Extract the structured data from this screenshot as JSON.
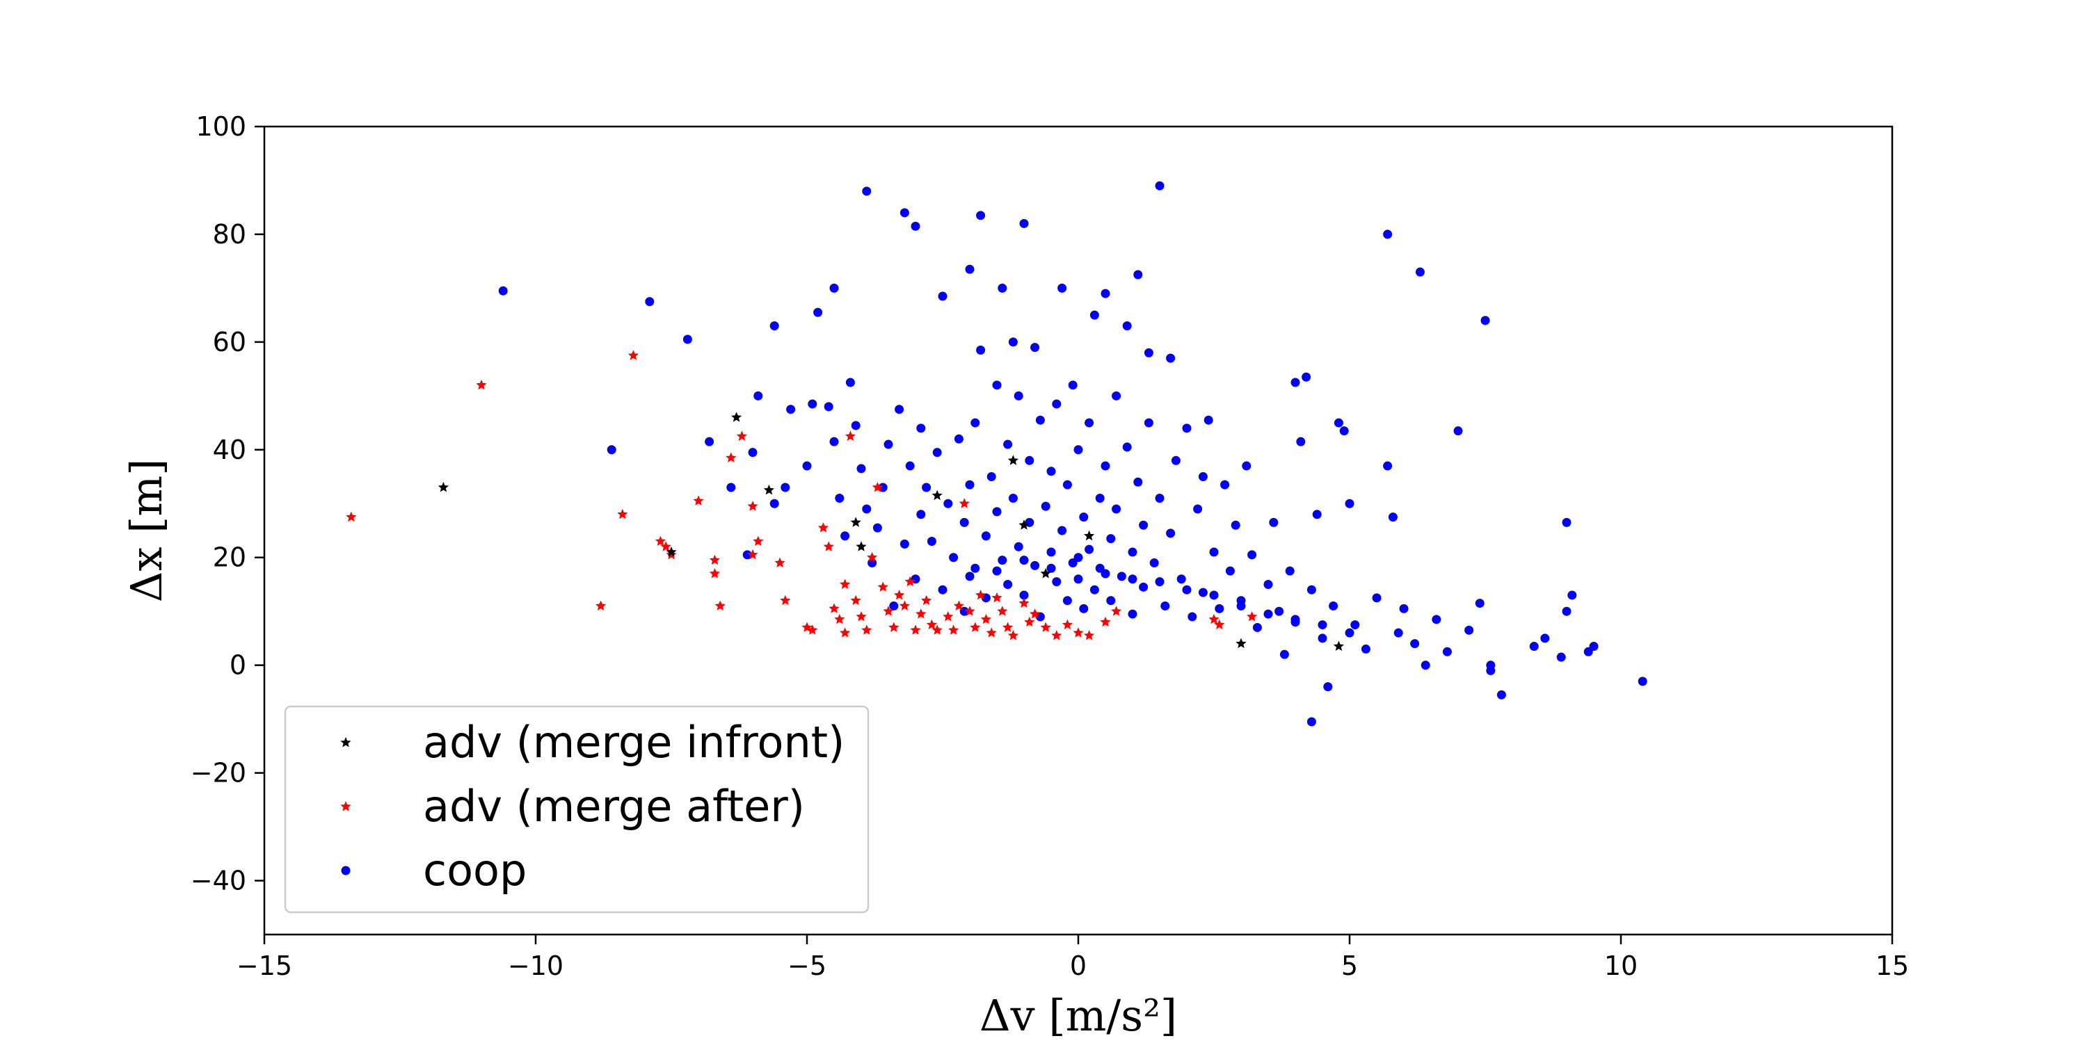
{
  "chart_data": {
    "type": "scatter",
    "xlabel": "Δv  [m/s²]",
    "ylabel": "Δx  [m]",
    "xlim": [
      -15,
      15
    ],
    "ylim": [
      -50,
      100
    ],
    "xticks": [
      -15,
      -10,
      -5,
      0,
      5,
      10,
      15
    ],
    "yticks": [
      -40,
      -20,
      0,
      20,
      40,
      60,
      80,
      100
    ],
    "xtick_labels": [
      "−15",
      "−10",
      "−5",
      "0",
      "5",
      "10",
      "15"
    ],
    "ytick_labels": [
      "−40",
      "−20",
      "0",
      "20",
      "40",
      "60",
      "80",
      "100"
    ],
    "grid": false,
    "legend_position": "lower-left",
    "series": [
      {
        "name": "adv (merge infront)",
        "color": "#000000",
        "marker": "star",
        "points": [
          [
            -11.7,
            33
          ],
          [
            -7.5,
            21
          ],
          [
            -6.3,
            46
          ],
          [
            -5.7,
            32.5
          ],
          [
            -4.1,
            26.5
          ],
          [
            -4.0,
            22
          ],
          [
            -2.6,
            31.5
          ],
          [
            -1.2,
            38
          ],
          [
            -1.0,
            26
          ],
          [
            -0.6,
            17
          ],
          [
            0.2,
            24
          ],
          [
            3.0,
            4
          ],
          [
            4.8,
            3.5
          ]
        ]
      },
      {
        "name": "adv (merge after)",
        "color": "#ff0000",
        "marker": "star",
        "points": [
          [
            -13.4,
            27.5
          ],
          [
            -11.0,
            52
          ],
          [
            -8.2,
            57.5
          ],
          [
            -8.8,
            11
          ],
          [
            -8.4,
            28
          ],
          [
            -7.7,
            23
          ],
          [
            -7.6,
            22
          ],
          [
            -7.5,
            20.5
          ],
          [
            -7.0,
            30.5
          ],
          [
            -6.7,
            19.5
          ],
          [
            -6.7,
            17
          ],
          [
            -6.6,
            11
          ],
          [
            -6.4,
            38.5
          ],
          [
            -6.2,
            42.5
          ],
          [
            -6.0,
            29.5
          ],
          [
            -6.0,
            20.5
          ],
          [
            -5.9,
            23
          ],
          [
            -5.5,
            19
          ],
          [
            -5.4,
            12
          ],
          [
            -5.0,
            7
          ],
          [
            -4.9,
            6.5
          ],
          [
            -4.7,
            25.5
          ],
          [
            -4.6,
            22
          ],
          [
            -4.5,
            10.5
          ],
          [
            -4.4,
            8.5
          ],
          [
            -4.3,
            15
          ],
          [
            -4.3,
            6
          ],
          [
            -4.2,
            42.5
          ],
          [
            -4.1,
            12
          ],
          [
            -4.0,
            9
          ],
          [
            -3.9,
            6.5
          ],
          [
            -3.8,
            20
          ],
          [
            -3.7,
            33
          ],
          [
            -3.6,
            14.5
          ],
          [
            -3.5,
            10
          ],
          [
            -3.4,
            7
          ],
          [
            -3.3,
            13
          ],
          [
            -3.2,
            11
          ],
          [
            -3.1,
            15.5
          ],
          [
            -3.0,
            6.5
          ],
          [
            -2.9,
            9.5
          ],
          [
            -2.8,
            12
          ],
          [
            -2.7,
            7.5
          ],
          [
            -2.6,
            6.5
          ],
          [
            -2.4,
            9
          ],
          [
            -2.3,
            6.5
          ],
          [
            -2.2,
            11
          ],
          [
            -2.1,
            30
          ],
          [
            -2.0,
            10
          ],
          [
            -1.9,
            7
          ],
          [
            -1.8,
            13
          ],
          [
            -1.7,
            8.5
          ],
          [
            -1.6,
            6
          ],
          [
            -1.5,
            12.5
          ],
          [
            -1.4,
            10
          ],
          [
            -1.3,
            7
          ],
          [
            -1.2,
            5.5
          ],
          [
            -1.0,
            11.5
          ],
          [
            -0.9,
            8
          ],
          [
            -0.8,
            9.5
          ],
          [
            -0.6,
            7
          ],
          [
            -0.4,
            5.5
          ],
          [
            -0.2,
            7.5
          ],
          [
            0.0,
            6
          ],
          [
            0.2,
            5.5
          ],
          [
            0.5,
            8
          ],
          [
            0.7,
            10
          ],
          [
            2.5,
            8.5
          ],
          [
            2.6,
            7.5
          ],
          [
            3.2,
            9
          ]
        ]
      },
      {
        "name": "coop",
        "color": "#0000ff",
        "marker": "circle",
        "points": [
          [
            -10.6,
            69.5
          ],
          [
            -8.6,
            40
          ],
          [
            -7.9,
            67.5
          ],
          [
            -7.2,
            60.5
          ],
          [
            -6.8,
            41.5
          ],
          [
            -6.4,
            33
          ],
          [
            -6.1,
            20.5
          ],
          [
            -6.0,
            39.5
          ],
          [
            -5.9,
            50
          ],
          [
            -5.6,
            63
          ],
          [
            -5.6,
            30
          ],
          [
            -5.4,
            33
          ],
          [
            -5.3,
            47.5
          ],
          [
            -5.0,
            37
          ],
          [
            -4.9,
            48.5
          ],
          [
            -4.8,
            65.5
          ],
          [
            -4.6,
            48
          ],
          [
            -4.5,
            70
          ],
          [
            -4.5,
            41.5
          ],
          [
            -4.4,
            31
          ],
          [
            -4.3,
            24
          ],
          [
            -4.2,
            52.5
          ],
          [
            -4.1,
            44.5
          ],
          [
            -4.0,
            36.5
          ],
          [
            -3.9,
            29
          ],
          [
            -3.9,
            88
          ],
          [
            -3.8,
            19
          ],
          [
            -3.7,
            25.5
          ],
          [
            -3.6,
            33
          ],
          [
            -3.5,
            41
          ],
          [
            -3.4,
            11
          ],
          [
            -3.3,
            47.5
          ],
          [
            -3.2,
            84
          ],
          [
            -3.2,
            22.5
          ],
          [
            -3.1,
            37
          ],
          [
            -3.0,
            81.5
          ],
          [
            -3.0,
            16
          ],
          [
            -2.9,
            28
          ],
          [
            -2.9,
            44
          ],
          [
            -2.8,
            33
          ],
          [
            -2.7,
            23
          ],
          [
            -2.6,
            39.5
          ],
          [
            -2.5,
            68.5
          ],
          [
            -2.5,
            14
          ],
          [
            -2.4,
            30
          ],
          [
            -2.3,
            20
          ],
          [
            -2.2,
            42
          ],
          [
            -2.1,
            26.5
          ],
          [
            -2.1,
            10
          ],
          [
            -2.0,
            73.5
          ],
          [
            -2.0,
            33.5
          ],
          [
            -1.9,
            18
          ],
          [
            -1.9,
            45
          ],
          [
            -1.8,
            58.5
          ],
          [
            -1.8,
            83.5
          ],
          [
            -1.7,
            24
          ],
          [
            -1.7,
            12.5
          ],
          [
            -1.6,
            35
          ],
          [
            -1.5,
            28.5
          ],
          [
            -1.5,
            52
          ],
          [
            -1.4,
            19.5
          ],
          [
            -1.4,
            70
          ],
          [
            -1.3,
            41
          ],
          [
            -1.3,
            15
          ],
          [
            -1.2,
            60
          ],
          [
            -1.2,
            31
          ],
          [
            -1.1,
            22
          ],
          [
            -1.1,
            50
          ],
          [
            -1.0,
            82
          ],
          [
            -1.0,
            13
          ],
          [
            -0.9,
            26.5
          ],
          [
            -0.9,
            38
          ],
          [
            -0.8,
            59
          ],
          [
            -0.8,
            18.5
          ],
          [
            -0.7,
            45.5
          ],
          [
            -0.7,
            9
          ],
          [
            -0.6,
            29.5
          ],
          [
            -0.5,
            21
          ],
          [
            -0.5,
            36
          ],
          [
            -0.4,
            15.5
          ],
          [
            -0.4,
            48.5
          ],
          [
            -0.3,
            70
          ],
          [
            -0.3,
            25
          ],
          [
            -0.2,
            12
          ],
          [
            -0.2,
            33.5
          ],
          [
            -0.1,
            19
          ],
          [
            -0.1,
            52
          ],
          [
            0.0,
            40
          ],
          [
            0.0,
            16
          ],
          [
            0.1,
            27.5
          ],
          [
            0.1,
            10.5
          ],
          [
            0.2,
            45
          ],
          [
            0.2,
            21.5
          ],
          [
            0.3,
            65
          ],
          [
            0.3,
            14
          ],
          [
            0.4,
            31
          ],
          [
            0.4,
            18
          ],
          [
            0.5,
            69
          ],
          [
            0.5,
            37
          ],
          [
            0.6,
            23.5
          ],
          [
            0.6,
            12
          ],
          [
            0.7,
            50
          ],
          [
            0.7,
            29
          ],
          [
            0.8,
            16.5
          ],
          [
            0.9,
            63
          ],
          [
            0.9,
            40.5
          ],
          [
            1.0,
            21
          ],
          [
            1.0,
            9.5
          ],
          [
            1.1,
            34
          ],
          [
            1.1,
            72.5
          ],
          [
            1.2,
            26
          ],
          [
            1.2,
            14.5
          ],
          [
            1.3,
            58
          ],
          [
            1.3,
            45
          ],
          [
            1.4,
            19
          ],
          [
            1.5,
            89
          ],
          [
            1.5,
            31
          ],
          [
            1.6,
            11
          ],
          [
            1.7,
            57
          ],
          [
            1.7,
            24.5
          ],
          [
            1.8,
            38
          ],
          [
            1.9,
            16
          ],
          [
            2.0,
            44
          ],
          [
            2.1,
            9
          ],
          [
            2.2,
            29
          ],
          [
            2.3,
            35
          ],
          [
            2.3,
            13.5
          ],
          [
            2.4,
            45.5
          ],
          [
            2.5,
            21
          ],
          [
            2.6,
            10.5
          ],
          [
            2.7,
            33.5
          ],
          [
            2.8,
            17.5
          ],
          [
            2.9,
            26
          ],
          [
            3.0,
            12
          ],
          [
            3.1,
            37
          ],
          [
            3.2,
            20.5
          ],
          [
            3.3,
            7
          ],
          [
            3.5,
            15
          ],
          [
            3.6,
            26.5
          ],
          [
            3.7,
            10
          ],
          [
            3.8,
            2
          ],
          [
            3.9,
            17.5
          ],
          [
            4.0,
            52.5
          ],
          [
            4.0,
            8.5
          ],
          [
            4.1,
            41.5
          ],
          [
            4.2,
            53.5
          ],
          [
            4.3,
            14
          ],
          [
            4.4,
            28
          ],
          [
            4.5,
            5
          ],
          [
            4.6,
            -4
          ],
          [
            4.7,
            11
          ],
          [
            4.8,
            45
          ],
          [
            4.9,
            43.5
          ],
          [
            4.3,
            -10.5
          ],
          [
            5.0,
            30
          ],
          [
            5.1,
            7.5
          ],
          [
            5.3,
            3
          ],
          [
            5.5,
            12.5
          ],
          [
            5.7,
            37
          ],
          [
            5.7,
            80
          ],
          [
            5.8,
            27.5
          ],
          [
            5.9,
            6
          ],
          [
            6.0,
            10.5
          ],
          [
            6.2,
            4
          ],
          [
            6.3,
            73
          ],
          [
            6.4,
            0
          ],
          [
            6.6,
            8.5
          ],
          [
            6.8,
            2.5
          ],
          [
            7.0,
            43.5
          ],
          [
            7.2,
            6.5
          ],
          [
            7.4,
            11.5
          ],
          [
            7.5,
            64
          ],
          [
            7.6,
            0
          ],
          [
            7.6,
            -1
          ],
          [
            7.8,
            -5.5
          ],
          [
            8.4,
            3.5
          ],
          [
            8.6,
            5
          ],
          [
            8.9,
            1.5
          ],
          [
            9.0,
            10
          ],
          [
            9.0,
            26.5
          ],
          [
            9.1,
            13
          ],
          [
            9.4,
            2.5
          ],
          [
            9.5,
            3.5
          ],
          [
            10.4,
            -3
          ],
          [
            -2.0,
            16.5
          ],
          [
            -1.5,
            17.5
          ],
          [
            -1.0,
            19.5
          ],
          [
            -0.5,
            18
          ],
          [
            0.0,
            20
          ],
          [
            0.5,
            17
          ],
          [
            1.0,
            16
          ],
          [
            1.5,
            15.5
          ],
          [
            2.0,
            14
          ],
          [
            2.5,
            13
          ],
          [
            3.0,
            11
          ],
          [
            3.5,
            9.5
          ],
          [
            4.0,
            8
          ],
          [
            4.5,
            7.5
          ],
          [
            5.0,
            6
          ]
        ]
      }
    ]
  }
}
